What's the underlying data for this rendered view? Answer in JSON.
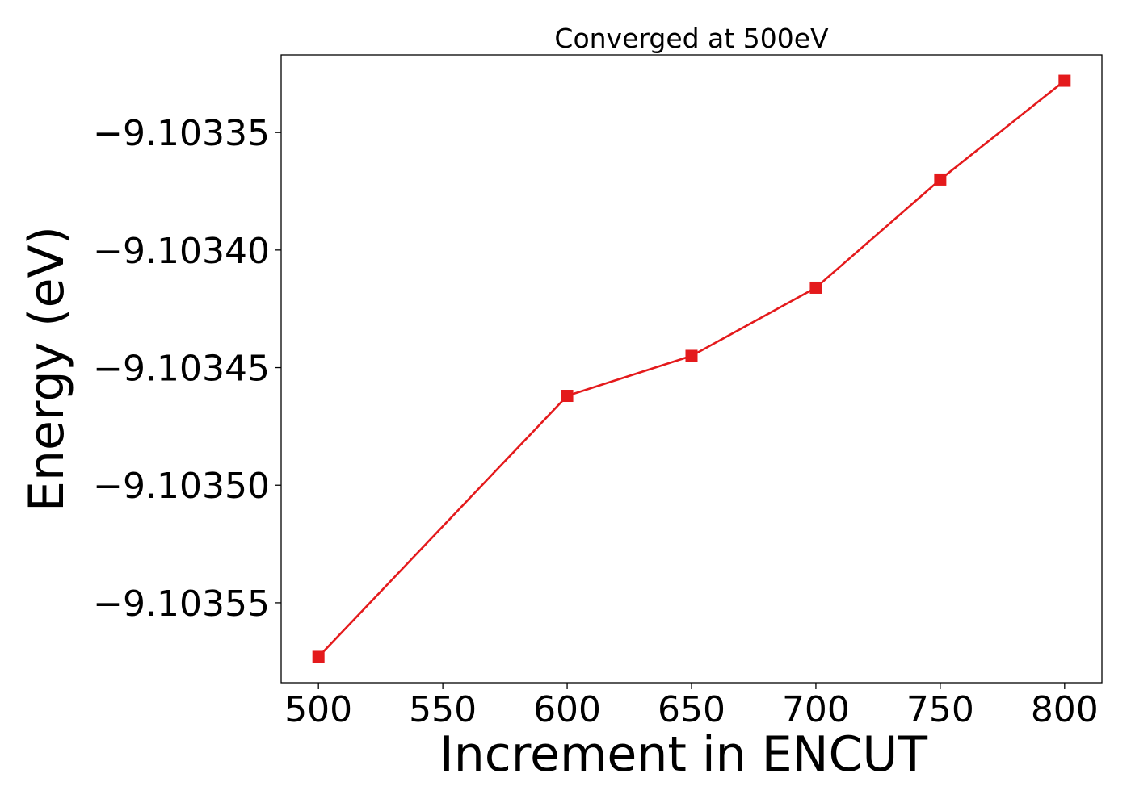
{
  "chart_data": {
    "type": "line",
    "title": "Converged at 500eV",
    "xlabel": "Increment in ENCUT",
    "ylabel": "Energy (eV)",
    "x": [
      500,
      600,
      650,
      700,
      750,
      800
    ],
    "series": [
      {
        "name": "",
        "values": [
          -9.103573,
          -9.103462,
          -9.103445,
          -9.103416,
          -9.10337,
          -9.103328
        ],
        "color": "#e41a1c",
        "marker": "square"
      }
    ],
    "xlim": [
      485,
      815
    ],
    "ylim": [
      -9.103584,
      -9.103317
    ],
    "xticks": [
      500,
      550,
      600,
      650,
      700,
      750,
      800
    ],
    "xtick_labels": [
      "500",
      "550",
      "600",
      "650",
      "700",
      "750",
      "800"
    ],
    "yticks": [
      -9.10355,
      -9.1035,
      -9.10345,
      -9.1034,
      -9.10335
    ],
    "ytick_labels": [
      "−9.10355",
      "−9.10350",
      "−9.10345",
      "−9.10340",
      "−9.10335"
    ],
    "grid": false,
    "legend": "none"
  }
}
